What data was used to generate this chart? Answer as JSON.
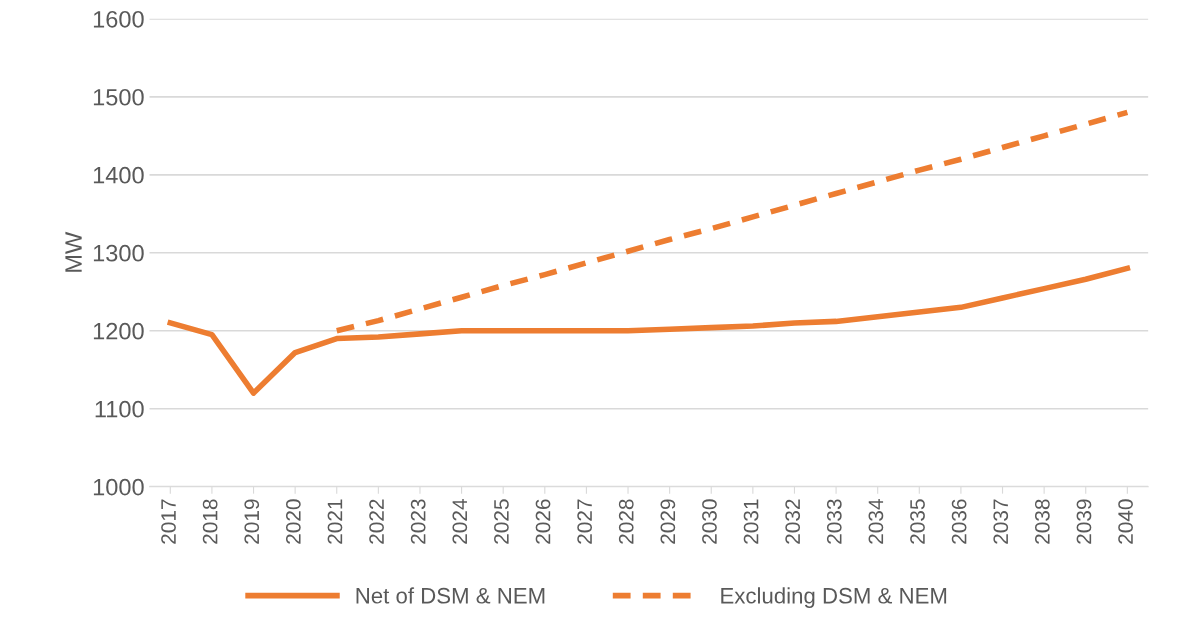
{
  "chart_data": {
    "type": "line",
    "ylabel": "MW",
    "categories": [
      "2017",
      "2018",
      "2019",
      "2020",
      "2021",
      "2022",
      "2023",
      "2024",
      "2025",
      "2026",
      "2027",
      "2028",
      "2029",
      "2030",
      "2031",
      "2032",
      "2033",
      "2034",
      "2035",
      "2036",
      "2037",
      "2038",
      "2039",
      "2040"
    ],
    "series": [
      {
        "name": "Net of DSM & NEM",
        "color": "#ed7d31",
        "line_style": "solid",
        "values": [
          1210,
          1195,
          1120,
          1172,
          1190,
          1192,
          1196,
          1200,
          1200,
          1200,
          1200,
          1200,
          1202,
          1204,
          1206,
          1210,
          1212,
          1218,
          1224,
          1230,
          1242,
          1254,
          1266,
          1280
        ]
      },
      {
        "name": "Excluding DSM & NEM",
        "color": "#ed7d31",
        "line_style": "dashed",
        "values": [
          null,
          null,
          null,
          null,
          1200,
          1213,
          1228,
          1243,
          1258,
          1272,
          1287,
          1302,
          1317,
          1331,
          1346,
          1361,
          1376,
          1391,
          1406,
          1420,
          1435,
          1450,
          1465,
          1480
        ]
      }
    ],
    "ylim": [
      1000,
      1600
    ],
    "yticks": [
      1000,
      1100,
      1200,
      1300,
      1400,
      1500,
      1600
    ],
    "grid": "y",
    "legend": "bottom",
    "marker": "none"
  }
}
